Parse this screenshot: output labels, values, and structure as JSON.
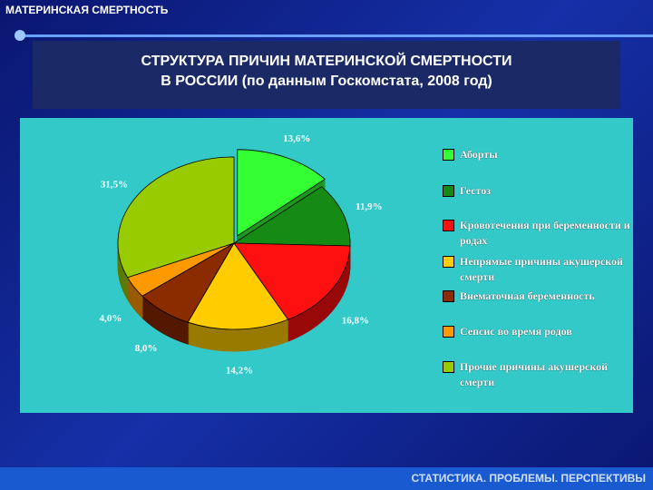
{
  "header": "МАТЕРИНСКАЯ СМЕРТНОСТЬ",
  "footer": "СТАТИСТИКА. ПРОБЛЕМЫ. ПЕРСПЕКТИВЫ",
  "chart_data": {
    "type": "pie",
    "title": "СТРУКТУРА ПРИЧИН МАТЕРИНСКОЙ СМЕРТНОСТИ",
    "subtitle": "В РОССИИ (по данным Госкомстата, 2008 год)",
    "categories": [
      "Аборты",
      "Гестоз",
      "Кровотечения при беременности и родах",
      "Непрямые причины акушерской смерти",
      "Внематочная беременность",
      "Сепсис во время родов",
      "Прочие причины акушерской смерти"
    ],
    "values": [
      13.6,
      11.9,
      16.8,
      14.2,
      8.0,
      4.0,
      31.5
    ],
    "value_labels": [
      "13,6%",
      "11,9%",
      "16,8%",
      "14,2%",
      "8,0%",
      "4,0%",
      "31,5%"
    ],
    "colors": [
      "#33ff33",
      "#158a15",
      "#ff1010",
      "#ffcc00",
      "#8a2b00",
      "#ff9900",
      "#99cc00"
    ],
    "legend": "right"
  }
}
